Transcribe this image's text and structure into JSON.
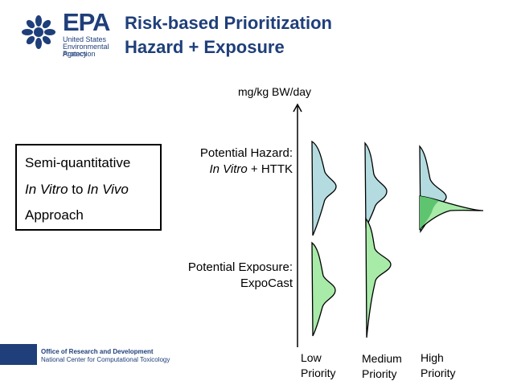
{
  "logo": {
    "name": "EPA",
    "line1": "United States",
    "line2": "Environmental Protection",
    "line3": "Agency",
    "color": "#1f3f7a"
  },
  "title": {
    "line1": "Risk-based Prioritization",
    "line2": "Hazard + Exposure"
  },
  "approach_box": {
    "line1": "Semi-quantitative",
    "line2_a": "In Vitro",
    "line2_b": " to ",
    "line2_c": "In Vivo",
    "line3": "Approach"
  },
  "axis": {
    "unit_label": "mg/kg BW/day"
  },
  "hazard_label": {
    "line1": "Potential Hazard:",
    "line2_a": "In Vitro",
    "line2_b": " + HTTK"
  },
  "exposure_label": {
    "line1": "Potential Exposure:",
    "line2": "ExpoCast"
  },
  "priorities": [
    {
      "line1": "Low",
      "line2": "Priority"
    },
    {
      "line1": "Medium",
      "line2": "Priority"
    },
    {
      "line1": "High",
      "line2": "Priority"
    }
  ],
  "colors": {
    "hazard_fill": "#b4dce0",
    "exposure_fill": "#a8eaa8",
    "overlap_fill": "#5fc46f",
    "brand_blue": "#1f3f7a"
  },
  "footer": {
    "line1": "Office of Research and Development",
    "line2": "National Center for Computational Toxicology"
  }
}
